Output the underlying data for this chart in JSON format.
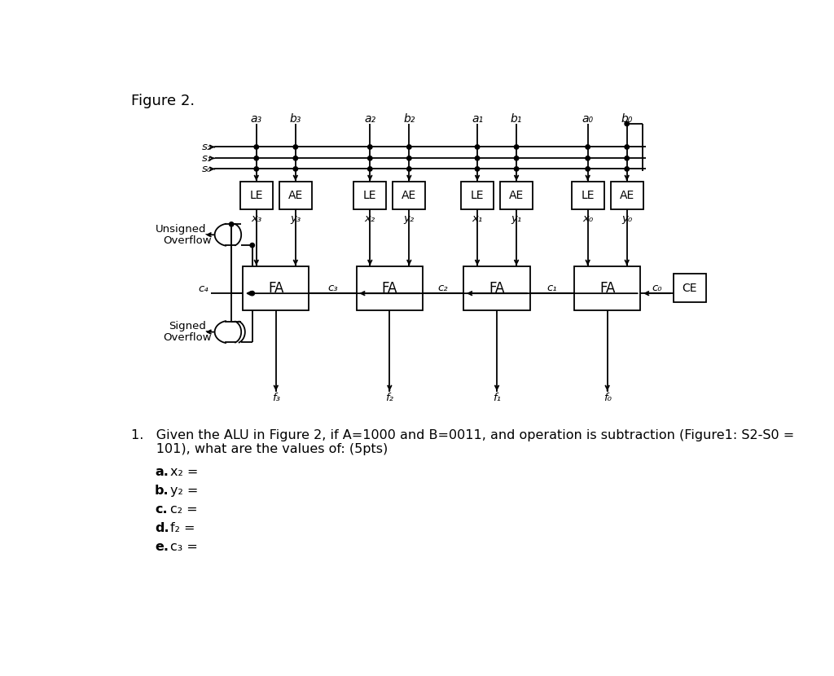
{
  "title": "Figure 2.",
  "bg": "#ffffff",
  "a_labels": [
    "a₃",
    "a₂",
    "a₁",
    "a₀"
  ],
  "b_labels": [
    "b₃",
    "b₂",
    "b₁",
    "b₀"
  ],
  "s_labels": [
    "s₂",
    "s₁",
    "s₀"
  ],
  "x_labels": [
    "x₃",
    "x₂",
    "x₁",
    "x₀"
  ],
  "y_labels": [
    "y₃",
    "y₂",
    "y₁",
    "y₀"
  ],
  "c_labels": [
    "c₄",
    "c₃",
    "c₂",
    "c₁",
    "c₀"
  ],
  "f_labels": [
    "f₃",
    "f₂",
    "f₁",
    "f₀"
  ],
  "question_line1": "1.   Given the ALU in Figure 2, if A=1000 and B=0011, and operation is subtraction (Figure1: S2-S0 =",
  "question_line2": "      101), what are the values of: (5pts)",
  "sub_labels": [
    "a.",
    "b.",
    "c.",
    "d.",
    "e."
  ],
  "sub_vars": [
    "x₂ =",
    "y₂ =",
    "c₂ =",
    "f₂ =",
    "c₃ ="
  ]
}
